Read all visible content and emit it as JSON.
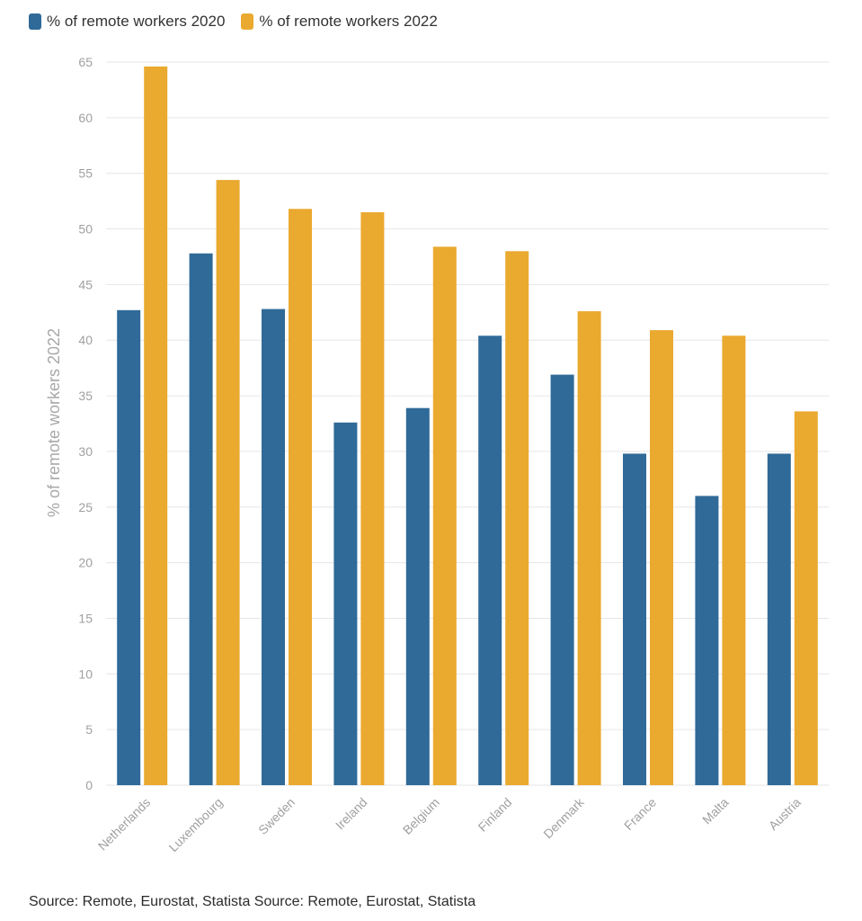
{
  "colors": {
    "series_2020": "#2f6a98",
    "series_2022": "#eaa92f",
    "grid": "#e6e6e6"
  },
  "legend": {
    "item_2020": "% of remote workers 2020",
    "item_2022": "% of remote workers 2022"
  },
  "source": "Source: Remote, Eurostat, Statista Source: Remote, Eurostat, Statista",
  "chart_data": {
    "type": "bar",
    "title": "",
    "xlabel": "",
    "ylabel": "% of remote workers 2022",
    "ylim": [
      0,
      65
    ],
    "yticks": [
      0,
      5,
      10,
      15,
      20,
      25,
      30,
      35,
      40,
      45,
      50,
      55,
      60,
      65
    ],
    "grid": true,
    "legend_position": "top-left",
    "categories": [
      "Netherlands",
      "Luxembourg",
      "Sweden",
      "Ireland",
      "Belgium",
      "Finland",
      "Denmark",
      "France",
      "Malta",
      "Austria"
    ],
    "series": [
      {
        "name": "% of remote workers 2020",
        "values": [
          42.7,
          47.8,
          42.8,
          32.6,
          33.9,
          40.4,
          36.9,
          29.8,
          26.0,
          29.8
        ]
      },
      {
        "name": "% of remote workers 2022",
        "values": [
          64.6,
          54.4,
          51.8,
          51.5,
          48.4,
          48.0,
          42.6,
          40.9,
          40.4,
          33.6
        ]
      }
    ]
  }
}
